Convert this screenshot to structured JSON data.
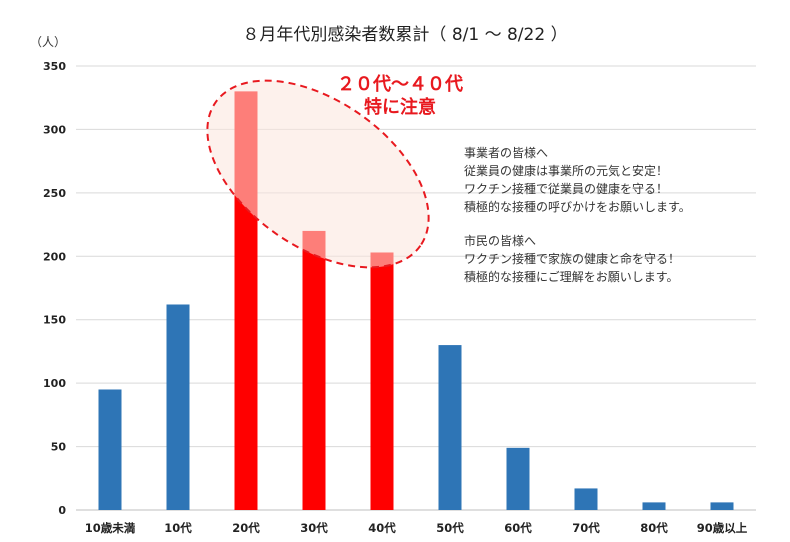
{
  "chart_data": {
    "type": "bar",
    "title": "８月年代別感染者数累計（ 8/1 ～ 8/22 ）",
    "ylabel": "（人）",
    "xlabel": "",
    "ylim": [
      0,
      350
    ],
    "yticks": [
      0,
      50,
      100,
      150,
      200,
      250,
      300,
      350
    ],
    "categories": [
      "10歳未満",
      "10代",
      "20代",
      "30代",
      "40代",
      "50代",
      "60代",
      "70代",
      "80代",
      "90歳以上"
    ],
    "values": [
      95,
      162,
      330,
      220,
      203,
      130,
      49,
      17,
      6,
      6
    ],
    "highlighted": [
      "20代",
      "30代",
      "40代"
    ],
    "colors": {
      "normal": "#2e75b6",
      "highlight": "#ff0000"
    },
    "grid": true,
    "legend": "none",
    "annotations": {
      "emphasis": [
        "２０代～４０代",
        "特に注意"
      ],
      "business_message": [
        "事業者の皆様へ",
        "従業員の健康は事業所の元気と安定！",
        "ワクチン接種で従業員の健康を守る！",
        "積極的な接種の呼びかけをお願いします。"
      ],
      "citizen_message": [
        "市民の皆様へ",
        "ワクチン接種で家族の健康と命を守る！",
        "積極的な接種にご理解をお願いします。"
      ]
    }
  }
}
